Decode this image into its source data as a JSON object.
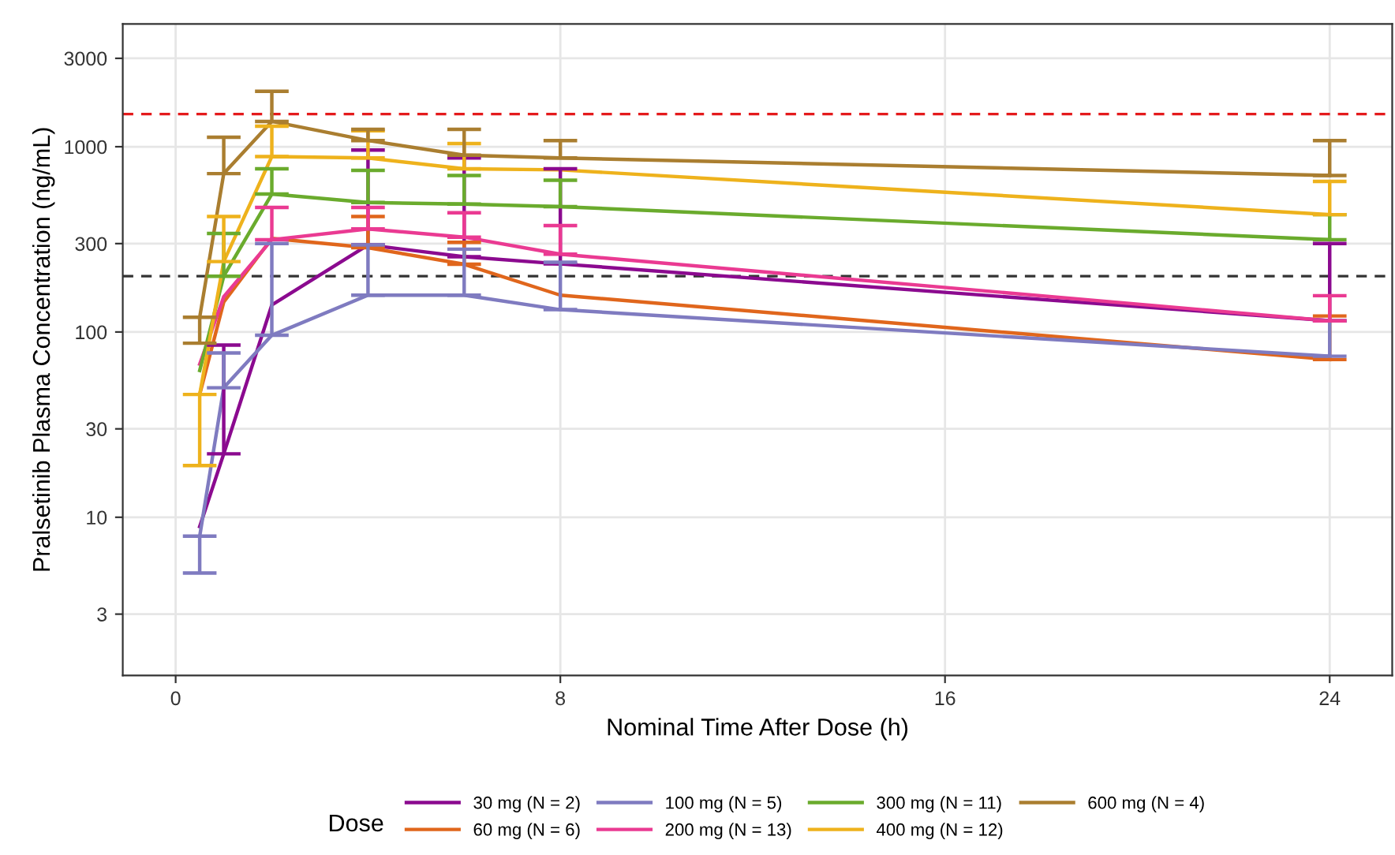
{
  "chart_data": {
    "type": "line",
    "xlabel": "Nominal Time After Dose (h)",
    "ylabel": "Pralsetinib Plasma Concentration (ng/mL)",
    "legend_title": "Dose",
    "legend": "bottom",
    "grid": true,
    "log": "y",
    "marker": "none",
    "line_style": "solid",
    "x": [
      0.5,
      1,
      2,
      4,
      6,
      8,
      24
    ],
    "xlim": [
      -1.1,
      25.3
    ],
    "xticks": [
      0,
      8,
      16,
      24
    ],
    "ylim": [
      1.4,
      4600
    ],
    "yticks": [
      3,
      10,
      30,
      100,
      300,
      1000,
      3000
    ],
    "ref_lines": [
      {
        "axis": "y",
        "value": 1500,
        "color": "#e41a1c",
        "line_style": "dashed"
      },
      {
        "axis": "y",
        "value": 200,
        "color": "#333333",
        "line_style": "dashed"
      }
    ],
    "series": [
      {
        "name": "30 mg (N = 2)",
        "color": "#8b0a8f",
        "values": [
          8.9,
          22,
          140,
          295,
          255,
          233,
          115
        ],
        "errors": [
          null,
          [
            22,
            85
          ],
          null,
          [
            295,
            960
          ],
          [
            255,
            870
          ],
          [
            233,
            760
          ],
          [
            115,
            300
          ]
        ]
      },
      {
        "name": "60 mg (N = 6)",
        "color": "#e0661c",
        "values": [
          46,
          145,
          320,
          285,
          232,
          158,
          71
        ],
        "errors": [
          null,
          null,
          null,
          [
            285,
            420
          ],
          [
            232,
            305
          ],
          null,
          [
            71,
            122
          ]
        ]
      },
      {
        "name": "100 mg (N = 5)",
        "color": "#7f7bc0",
        "values": [
          7.9,
          50,
          96,
          158,
          158,
          132,
          74
        ],
        "errors": [
          [
            5,
            7.9
          ],
          [
            50,
            77
          ],
          [
            96,
            300
          ],
          [
            158,
            295
          ],
          [
            158,
            280
          ],
          [
            132,
            238
          ],
          [
            74,
            115
          ]
        ]
      },
      {
        "name": "200 mg (N = 13)",
        "color": "#ea3a92",
        "values": [
          67,
          155,
          315,
          360,
          325,
          263,
          115
        ],
        "errors": [
          null,
          null,
          [
            315,
            470
          ],
          [
            360,
            470
          ],
          [
            325,
            440
          ],
          [
            263,
            375
          ],
          [
            115,
            157
          ]
        ]
      },
      {
        "name": "300 mg (N = 11)",
        "color": "#6aab2d",
        "values": [
          62,
          200,
          555,
          500,
          490,
          475,
          315
        ],
        "errors": [
          null,
          [
            200,
            340
          ],
          [
            555,
            760
          ],
          [
            500,
            745
          ],
          [
            490,
            700
          ],
          [
            475,
            660
          ],
          [
            315,
            430
          ]
        ]
      },
      {
        "name": "400 mg (N = 12)",
        "color": "#eeb21c",
        "values": [
          46,
          240,
          885,
          870,
          760,
          750,
          430
        ],
        "errors": [
          [
            19,
            46
          ],
          [
            240,
            420
          ],
          [
            885,
            1290
          ],
          [
            870,
            1220
          ],
          [
            760,
            1040
          ],
          null,
          [
            430,
            650
          ]
        ]
      },
      {
        "name": "600 mg (N = 4)",
        "color": "#aa7e30",
        "values": [
          120,
          716,
          1370,
          1080,
          900,
          870,
          700
        ],
        "errors": [
          [
            87,
            120
          ],
          [
            716,
            1125
          ],
          [
            1370,
            1990
          ],
          [
            1080,
            1240
          ],
          [
            900,
            1240
          ],
          [
            870,
            1080
          ],
          [
            700,
            1080
          ]
        ]
      }
    ]
  }
}
